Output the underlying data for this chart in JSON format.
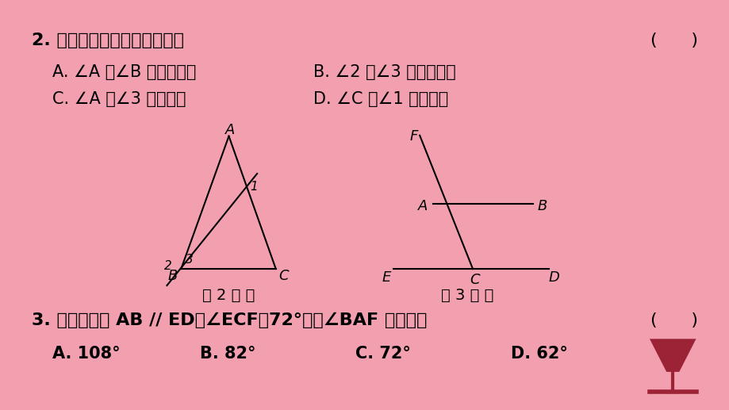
{
  "bg_color": "#f2a0b0",
  "panel_color": "#ffffff",
  "q2_text": "2. 如图，下列说法中错误的是",
  "q2_bracket": "(      )",
  "q2_A": "A. ∠A 和∠B 是同旁内角",
  "q2_B": "B. ∠2 和∠3 是同旁内角",
  "q2_C": "C. ∠A 和∠3 是同位角",
  "q2_D": "D. ∠C 和∠1 是内错角",
  "fig2_caption": "第 2 题 图",
  "fig3_caption": "第 3 题 图",
  "q3_text": "3. 如图，已知 AB // ED，∠ECF＝72°，则∠BAF 的度数为",
  "q3_bracket": "(      )",
  "q3_A": "A. 108°",
  "q3_B": "B. 82°",
  "q3_C": "C. 72°",
  "q3_D": "D. 62°",
  "line_color": "#000000",
  "text_color": "#000000",
  "font_size_main": 16,
  "font_size_options": 15,
  "font_size_label": 13
}
